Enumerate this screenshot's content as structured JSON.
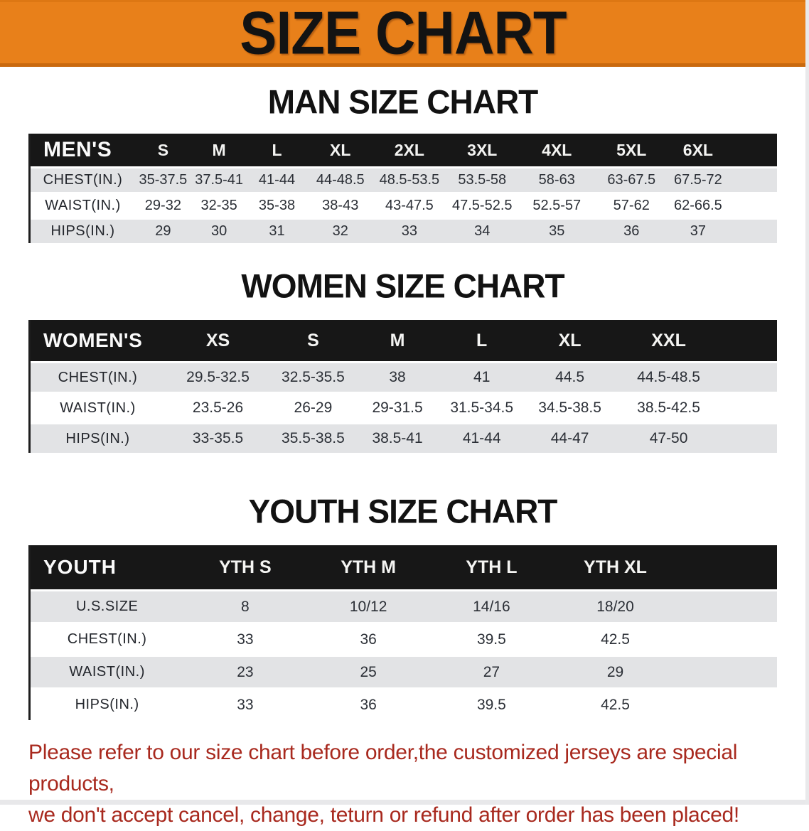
{
  "banner": {
    "title": "SIZE CHART"
  },
  "colors": {
    "banner_orange": "#E8801A",
    "banner_orange_dark": "#C9690E",
    "table_header_black": "#171717",
    "stripe_gray": "#E2E3E5",
    "cell_text": "#2B2F36",
    "footer_red": "#A8291E"
  },
  "sections": [
    {
      "heading": "MAN SIZE CHART",
      "table": {
        "label": "MEN'S",
        "sizes": [
          "S",
          "M",
          "L",
          "XL",
          "2XL",
          "3XL",
          "4XL",
          "5XL",
          "6XL"
        ],
        "rows": [
          {
            "label": "CHEST(IN.)",
            "values": [
              "35-37.5",
              "37.5-41",
              "41-44",
              "44-48.5",
              "48.5-53.5",
              "53.5-58",
              "58-63",
              "63-67.5",
              "67.5-72"
            ]
          },
          {
            "label": "WAIST(IN.)",
            "values": [
              "29-32",
              "32-35",
              "35-38",
              "38-43",
              "43-47.5",
              "47.5-52.5",
              "52.5-57",
              "57-62",
              "62-66.5"
            ]
          },
          {
            "label": "HIPS(IN.)",
            "values": [
              "29",
              "30",
              "31",
              "32",
              "33",
              "34",
              "35",
              "36",
              "37"
            ]
          }
        ]
      }
    },
    {
      "heading": "WOMEN SIZE CHART",
      "table": {
        "label": "WOMEN'S",
        "sizes": [
          "XS",
          "S",
          "M",
          "L",
          "XL",
          "XXL"
        ],
        "rows": [
          {
            "label": "CHEST(IN.)",
            "values": [
              "29.5-32.5",
              "32.5-35.5",
              "38",
              "41",
              "44.5",
              "44.5-48.5"
            ]
          },
          {
            "label": "WAIST(IN.)",
            "values": [
              "23.5-26",
              "26-29",
              "29-31.5",
              "31.5-34.5",
              "34.5-38.5",
              "38.5-42.5"
            ]
          },
          {
            "label": "HIPS(IN.)",
            "values": [
              "33-35.5",
              "35.5-38.5",
              "38.5-41",
              "41-44",
              "44-47",
              "47-50"
            ]
          }
        ]
      }
    },
    {
      "heading": "YOUTH SIZE CHART",
      "table": {
        "label": "YOUTH",
        "sizes": [
          "YTH S",
          "YTH M",
          "YTH L",
          "YTH XL"
        ],
        "rows": [
          {
            "label": "U.S.SIZE",
            "values": [
              "8",
              "10/12",
              "14/16",
              "18/20"
            ]
          },
          {
            "label": "CHEST(IN.)",
            "values": [
              "33",
              "36",
              "39.5",
              "42.5"
            ]
          },
          {
            "label": "WAIST(IN.)",
            "values": [
              "23",
              "25",
              "27",
              "29"
            ]
          },
          {
            "label": "HIPS(IN.)",
            "values": [
              "33",
              "36",
              "39.5",
              "42.5"
            ]
          }
        ]
      }
    }
  ],
  "footer": {
    "line1": "Please refer to our size chart before order,the customized jerseys are special products,",
    "line2": "we don't accept cancel, change, teturn or refund after order has been placed!"
  }
}
